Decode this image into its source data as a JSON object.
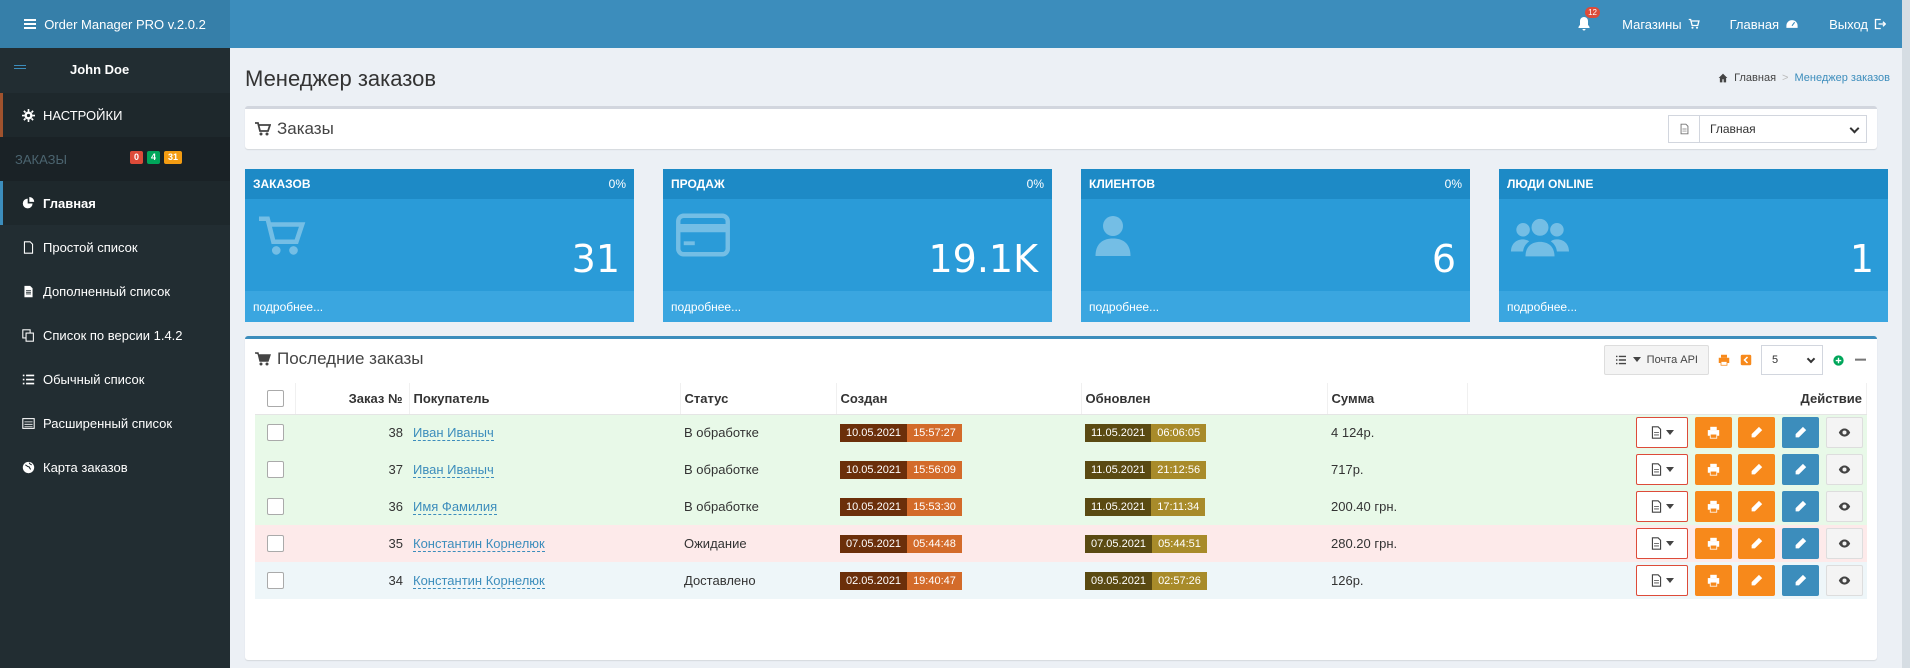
{
  "app": {
    "title": "Order Manager PRO v.2.0.2"
  },
  "topnav": {
    "notifications_count": "12",
    "shops_label": "Магазины",
    "home_label": "Главная",
    "logout_label": "Выход"
  },
  "sidebar": {
    "user_name": "John Doe",
    "settings_label": "НАСТРОЙКИ",
    "orders_header": "ЗАКАЗЫ",
    "badges": [
      "0",
      "4",
      "31"
    ],
    "items": [
      {
        "label": "Главная",
        "icon": "pie-chart-icon",
        "active": true
      },
      {
        "label": "Простой список",
        "icon": "file-icon"
      },
      {
        "label": "Дополненный список",
        "icon": "file-text-icon"
      },
      {
        "label": "Список по версии 1.4.2",
        "icon": "copy-icon"
      },
      {
        "label": "Обычный список",
        "icon": "list-icon"
      },
      {
        "label": "Расширенный список",
        "icon": "list-alt-icon"
      },
      {
        "label": "Карта заказов",
        "icon": "globe-icon"
      }
    ]
  },
  "page": {
    "title": "Менеджер заказов",
    "breadcrumb_home": "Главная",
    "breadcrumb_current": "Менеджер заказов"
  },
  "orders_box": {
    "title": "Заказы",
    "select_value": "Главная"
  },
  "stats": [
    {
      "label": "ЗАКАЗОВ",
      "pct": "0%",
      "value": "31",
      "more": "подробнее...",
      "icon": "cart-icon"
    },
    {
      "label": "ПРОДАЖ",
      "pct": "0%",
      "value": "19.1K",
      "more": "подробнее...",
      "icon": "credit-card-icon"
    },
    {
      "label": "КЛИЕНТОВ",
      "pct": "0%",
      "value": "6",
      "more": "подробнее...",
      "icon": "user-icon"
    },
    {
      "label": "ЛЮДИ ONLINE",
      "pct": "",
      "value": "1",
      "more": "подробнее...",
      "icon": "users-icon"
    }
  ],
  "recent": {
    "title": "Последние заказы",
    "api_button": "Почта API",
    "page_size": "5",
    "columns": [
      "Заказ №",
      "Покупатель",
      "Статус",
      "Создан",
      "Обновлен",
      "Сумма",
      "Действие"
    ],
    "rows": [
      {
        "id": "38",
        "buyer": "Иван Иваныч",
        "status": "В обработке",
        "created_date": "10.05.2021",
        "created_time": "15:57:27",
        "updated_date": "11.05.2021",
        "updated_time": "06:06:05",
        "sum": "4 124р.",
        "tone": "green"
      },
      {
        "id": "37",
        "buyer": "Иван Иваныч",
        "status": "В обработке",
        "created_date": "10.05.2021",
        "created_time": "15:56:09",
        "updated_date": "11.05.2021",
        "updated_time": "21:12:56",
        "sum": "717р.",
        "tone": "green"
      },
      {
        "id": "36",
        "buyer": "Имя Фамилия",
        "status": "В обработке",
        "created_date": "10.05.2021",
        "created_time": "15:53:30",
        "updated_date": "11.05.2021",
        "updated_time": "17:11:34",
        "sum": "200.40 грн.",
        "tone": "green"
      },
      {
        "id": "35",
        "buyer": "Константин Корнелюк",
        "status": "Ожидание",
        "created_date": "07.05.2021",
        "created_time": "05:44:48",
        "updated_date": "07.05.2021",
        "updated_time": "05:44:51",
        "sum": "280.20 грн.",
        "tone": "red"
      },
      {
        "id": "34",
        "buyer": "Константин Корнелюк",
        "status": "Доставлено",
        "created_date": "02.05.2021",
        "created_time": "19:40:47",
        "updated_date": "09.05.2021",
        "updated_time": "02:57:26",
        "sum": "126р.",
        "tone": "blue"
      }
    ]
  }
}
